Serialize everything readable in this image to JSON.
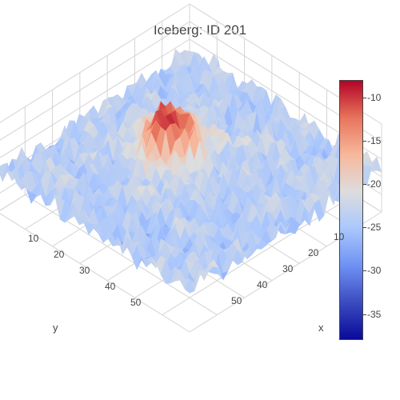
{
  "chart_data": {
    "type": "surface",
    "title": "Iceberg: ID 201",
    "xlabel": "x",
    "ylabel": "y",
    "zlabel": "",
    "grid": true,
    "colorscale": "coolwarm",
    "colorscale_stops": [
      "#0a0a9a",
      "#3b4cc0",
      "#6f92f3",
      "#aac7fd",
      "#dddddd",
      "#f7b89c",
      "#e7745b",
      "#b40426"
    ],
    "colorbar": {
      "range": [
        -38,
        -8
      ],
      "tick_values": [
        -10,
        -15,
        -20,
        -25,
        -30,
        -35
      ],
      "tick_labels": [
        "-10",
        "-15",
        "-20",
        "-25",
        "-30",
        "-35"
      ]
    },
    "x_axis": {
      "range": [
        0,
        75
      ],
      "tick_labels": [
        "10",
        "20",
        "30",
        "40",
        "50"
      ]
    },
    "y_axis": {
      "range": [
        0,
        75
      ],
      "tick_labels": [
        "10",
        "20",
        "30",
        "40",
        "50"
      ]
    },
    "z_range": [
      -38,
      -8
    ],
    "surface_description_values": {
      "background_level": -24,
      "peak_value": -9,
      "peak_location_xy": [
        28,
        36
      ]
    }
  }
}
